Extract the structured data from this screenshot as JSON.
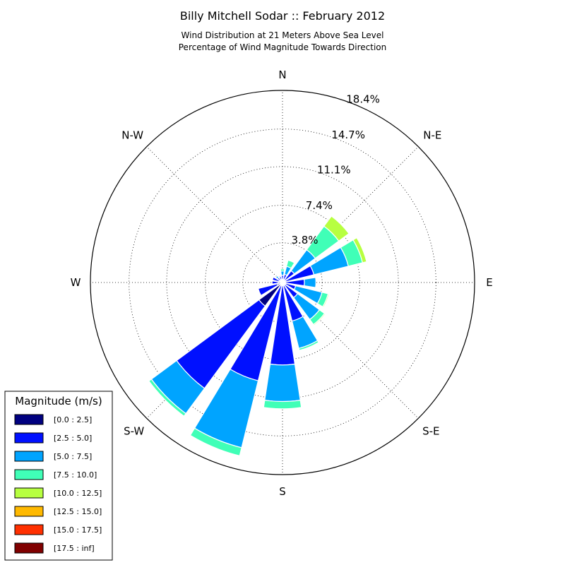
{
  "chart_data": {
    "type": "windrose",
    "title": "Billy Mitchell Sodar :: February 2012",
    "subtitle_lines": [
      "Wind Distribution at 21 Meters Above Sea Level",
      "Percentage of Wind Magnitude Towards Direction"
    ],
    "directions": [
      "N",
      "N-E",
      "E",
      "S-E",
      "S",
      "S-W",
      "W",
      "N-W"
    ],
    "rings": [
      {
        "value": 3.8,
        "label": "3.8%"
      },
      {
        "value": 7.4,
        "label": "7.4%"
      },
      {
        "value": 11.1,
        "label": "11.1%"
      },
      {
        "value": 14.7,
        "label": "14.7%"
      },
      {
        "value": 18.4,
        "label": "18.4%"
      }
    ],
    "rmax": 18.4,
    "bins": [
      {
        "name": "[0.0 : 2.5]",
        "color": "#000080"
      },
      {
        "name": "[2.5 : 5.0]",
        "color": "#0010ff"
      },
      {
        "name": "[5.0 : 7.5]",
        "color": "#00a4ff"
      },
      {
        "name": "[7.5 : 10.0]",
        "color": "#40ffb7"
      },
      {
        "name": "[10.0 : 12.5]",
        "color": "#b7ff40"
      },
      {
        "name": "[12.5 : 15.0]",
        "color": "#ffb900"
      },
      {
        "name": "[15.0 : 17.5]",
        "color": "#ff3000"
      },
      {
        "name": "[17.5 : inf]",
        "color": "#800000"
      }
    ],
    "sector_angles_deg": [
      0,
      22.5,
      45,
      67.5,
      90,
      112.5,
      135,
      157.5,
      180,
      202.5,
      225,
      247.5,
      270,
      292.5,
      315,
      337.5
    ],
    "cumulative": [
      [
        0.3,
        0.7,
        1.1,
        1.3,
        1.3,
        1.3,
        1.3,
        1.3
      ],
      [
        0.3,
        0.8,
        1.6,
        2.2,
        2.2,
        2.2,
        2.2,
        2.2
      ],
      [
        0.3,
        1.4,
        3.9,
        6.7,
        7.9,
        7.9,
        7.9,
        7.9
      ],
      [
        0.3,
        3.1,
        6.5,
        7.9,
        8.3,
        8.3,
        8.3,
        8.3
      ],
      [
        0.3,
        2.1,
        3.2,
        3.2,
        3.2,
        3.2,
        3.2,
        3.2
      ],
      [
        0.3,
        1.3,
        3.9,
        4.5,
        4.6,
        4.6,
        4.6,
        4.6
      ],
      [
        0.3,
        1.8,
        4.4,
        5.0,
        5.1,
        5.1,
        5.1,
        5.1
      ],
      [
        0.3,
        3.8,
        6.5,
        6.7,
        6.7,
        6.7,
        6.7,
        6.7
      ],
      [
        0.3,
        7.9,
        11.4,
        12.1,
        12.1,
        12.1,
        12.1,
        12.1
      ],
      [
        0.3,
        9.7,
        16.3,
        17.1,
        17.1,
        17.1,
        17.1,
        17.1
      ],
      [
        2.8,
        12.6,
        15.6,
        15.9,
        15.9,
        15.9,
        15.9,
        15.9
      ],
      [
        0.5,
        2.4,
        2.4,
        2.4,
        2.4,
        2.4,
        2.4,
        2.4
      ],
      [
        0.4,
        1.0,
        1.0,
        1.0,
        1.0,
        1.0,
        1.0,
        1.0
      ],
      [
        0.3,
        1.0,
        1.0,
        1.0,
        1.0,
        1.0,
        1.0,
        1.0
      ],
      [
        0.3,
        0.6,
        0.8,
        0.8,
        0.8,
        0.8,
        0.8,
        0.8
      ],
      [
        0.3,
        0.6,
        0.7,
        0.7,
        0.7,
        0.7,
        0.7,
        0.7
      ]
    ],
    "legend_title": "Magnitude (m/s)",
    "legend_position": "lower-left"
  }
}
